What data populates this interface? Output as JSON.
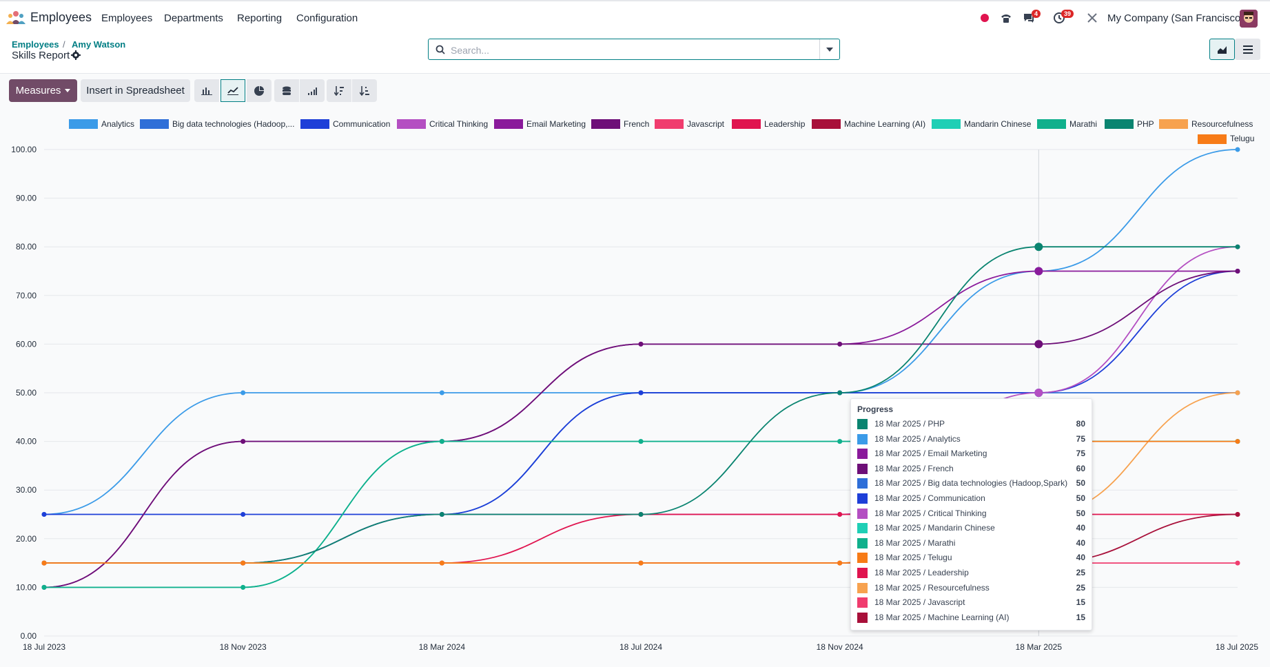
{
  "navbar": {
    "app_name": "Employees",
    "menu": [
      "Employees",
      "Departments",
      "Reporting",
      "Configuration"
    ],
    "messages_count": "4",
    "activities_count": "39",
    "company": "My Company (San Francisco)"
  },
  "breadcrumb": {
    "parent": "Employees",
    "separator": "/",
    "current": "Amy Watson",
    "title": "Skills Report"
  },
  "search": {
    "placeholder": "Search..."
  },
  "toolbar": {
    "measures_label": "Measures",
    "insert_label": "Insert in Spreadsheet"
  },
  "colors": {
    "accent": "#714b67",
    "teal": "#017e84"
  },
  "icons": [
    "bar-chart-icon",
    "line-chart-icon",
    "pie-chart-icon",
    "stacked-icon",
    "cumulative-icon",
    "sort-descending-icon",
    "sort-ascending-icon",
    "graph-view-icon",
    "list-view-icon"
  ],
  "chart_data": {
    "type": "line",
    "x": [
      "18 Jul 2023",
      "18 Nov 2023",
      "18 Mar 2024",
      "18 Jul 2024",
      "18 Nov 2024",
      "18 Mar 2025",
      "18 Jul 2025"
    ],
    "yticks": [
      "0.00",
      "10.00",
      "20.00",
      "30.00",
      "40.00",
      "50.00",
      "60.00",
      "70.00",
      "80.00",
      "90.00",
      "100.00"
    ],
    "ylim": [
      0,
      100
    ],
    "grid": true,
    "legend": "top",
    "series": [
      {
        "name": "Analytics",
        "color": "#3b9be8",
        "values": [
          25,
          50,
          50,
          50,
          50,
          75,
          100
        ]
      },
      {
        "name": "Big data technologies (Hadoop,...",
        "color": "#2f6fd8",
        "values": [
          15,
          15,
          25,
          50,
          50,
          50,
          50
        ]
      },
      {
        "name": "Communication",
        "color": "#1e3fd8",
        "values": [
          25,
          25,
          25,
          50,
          50,
          50,
          75
        ]
      },
      {
        "name": "Critical Thinking",
        "color": "#b44fc2",
        "values": [
          15,
          15,
          25,
          25,
          25,
          50,
          80
        ]
      },
      {
        "name": "Email Marketing",
        "color": "#8a1a9b",
        "values": [
          10,
          40,
          40,
          60,
          60,
          75,
          75
        ]
      },
      {
        "name": "French",
        "color": "#6e0f78",
        "values": [
          10,
          40,
          40,
          60,
          60,
          60,
          75
        ]
      },
      {
        "name": "Javascript",
        "color": "#f03c6e",
        "values": [
          15,
          15,
          15,
          15,
          15,
          15,
          15
        ]
      },
      {
        "name": "Leadership",
        "color": "#e0144f",
        "values": [
          15,
          15,
          15,
          25,
          25,
          25,
          25
        ]
      },
      {
        "name": "Machine Learning (AI)",
        "color": "#a8103a",
        "values": [
          15,
          15,
          15,
          15,
          15,
          15,
          25
        ]
      },
      {
        "name": "Mandarin Chinese",
        "color": "#1fcfb5",
        "values": [
          10,
          10,
          40,
          40,
          40,
          40,
          40
        ]
      },
      {
        "name": "Marathi",
        "color": "#10b08c",
        "values": [
          10,
          10,
          40,
          40,
          40,
          40,
          40
        ]
      },
      {
        "name": "PHP",
        "color": "#0a8470",
        "values": [
          15,
          15,
          25,
          25,
          50,
          80,
          80
        ]
      },
      {
        "name": "Resourcefulness",
        "color": "#f7a24f",
        "values": [
          15,
          15,
          15,
          15,
          15,
          25,
          50
        ]
      },
      {
        "name": "Telugu",
        "color": "#f77b17",
        "values": [
          15,
          15,
          15,
          15,
          15,
          40,
          40
        ]
      }
    ]
  },
  "tooltip": {
    "title": "Progress",
    "rows": [
      {
        "label": "18 Mar 2025 / PHP",
        "value": "80",
        "color": "#0a8470"
      },
      {
        "label": "18 Mar 2025 / Analytics",
        "value": "75",
        "color": "#3b9be8"
      },
      {
        "label": "18 Mar 2025 / Email Marketing",
        "value": "75",
        "color": "#8a1a9b"
      },
      {
        "label": "18 Mar 2025 / French",
        "value": "60",
        "color": "#6e0f78"
      },
      {
        "label": "18 Mar 2025 / Big data technologies (Hadoop,Spark)",
        "value": "50",
        "color": "#2f6fd8"
      },
      {
        "label": "18 Mar 2025 / Communication",
        "value": "50",
        "color": "#1e3fd8"
      },
      {
        "label": "18 Mar 2025 / Critical Thinking",
        "value": "50",
        "color": "#b44fc2"
      },
      {
        "label": "18 Mar 2025 / Mandarin Chinese",
        "value": "40",
        "color": "#1fcfb5"
      },
      {
        "label": "18 Mar 2025 / Marathi",
        "value": "40",
        "color": "#10b08c"
      },
      {
        "label": "18 Mar 2025 / Telugu",
        "value": "40",
        "color": "#f77b17"
      },
      {
        "label": "18 Mar 2025 / Leadership",
        "value": "25",
        "color": "#e0144f"
      },
      {
        "label": "18 Mar 2025 / Resourcefulness",
        "value": "25",
        "color": "#f7a24f"
      },
      {
        "label": "18 Mar 2025 / Javascript",
        "value": "15",
        "color": "#f03c6e"
      },
      {
        "label": "18 Mar 2025 / Machine Learning (AI)",
        "value": "15",
        "color": "#a8103a"
      }
    ]
  }
}
